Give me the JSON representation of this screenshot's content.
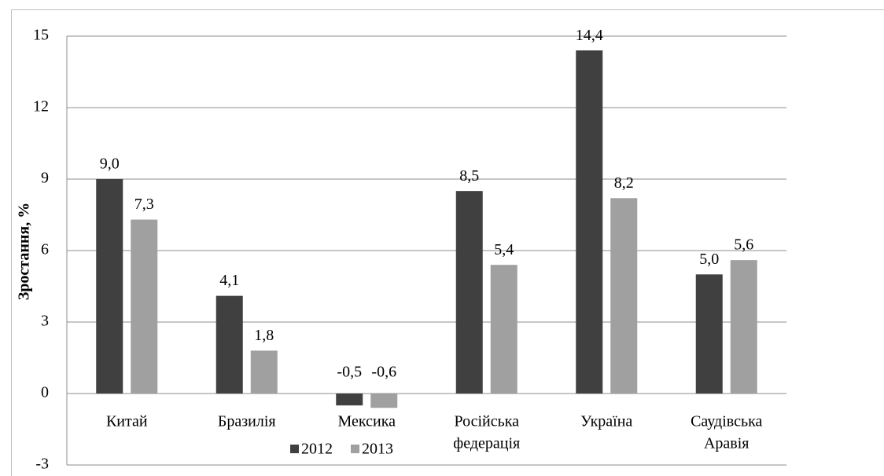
{
  "chart_data": {
    "type": "bar",
    "y_label": "Зростання, %",
    "categories": [
      [
        "Китай"
      ],
      [
        "Бразилія"
      ],
      [
        "Мексика"
      ],
      [
        "Російська",
        "федерація"
      ],
      [
        "Україна"
      ],
      [
        "Саудівська",
        "Аравія"
      ]
    ],
    "series": [
      {
        "name": "2012",
        "color": "#404040",
        "values": [
          9.0,
          4.1,
          -0.5,
          8.5,
          14.4,
          5.0
        ],
        "value_labels": [
          "9,0",
          "4,1",
          "-0,5",
          "8,5",
          "14,4",
          "5,0"
        ]
      },
      {
        "name": "2013",
        "color": "#a0a0a0",
        "values": [
          7.3,
          1.8,
          -0.6,
          5.4,
          8.2,
          5.6
        ],
        "value_labels": [
          "7,3",
          "1,8",
          "-0,6",
          "5,4",
          "8,2",
          "5,6"
        ]
      }
    ],
    "ylim": [
      -3,
      15
    ],
    "yticks": [
      -3,
      0,
      3,
      6,
      9,
      12,
      15
    ],
    "grid": true
  }
}
